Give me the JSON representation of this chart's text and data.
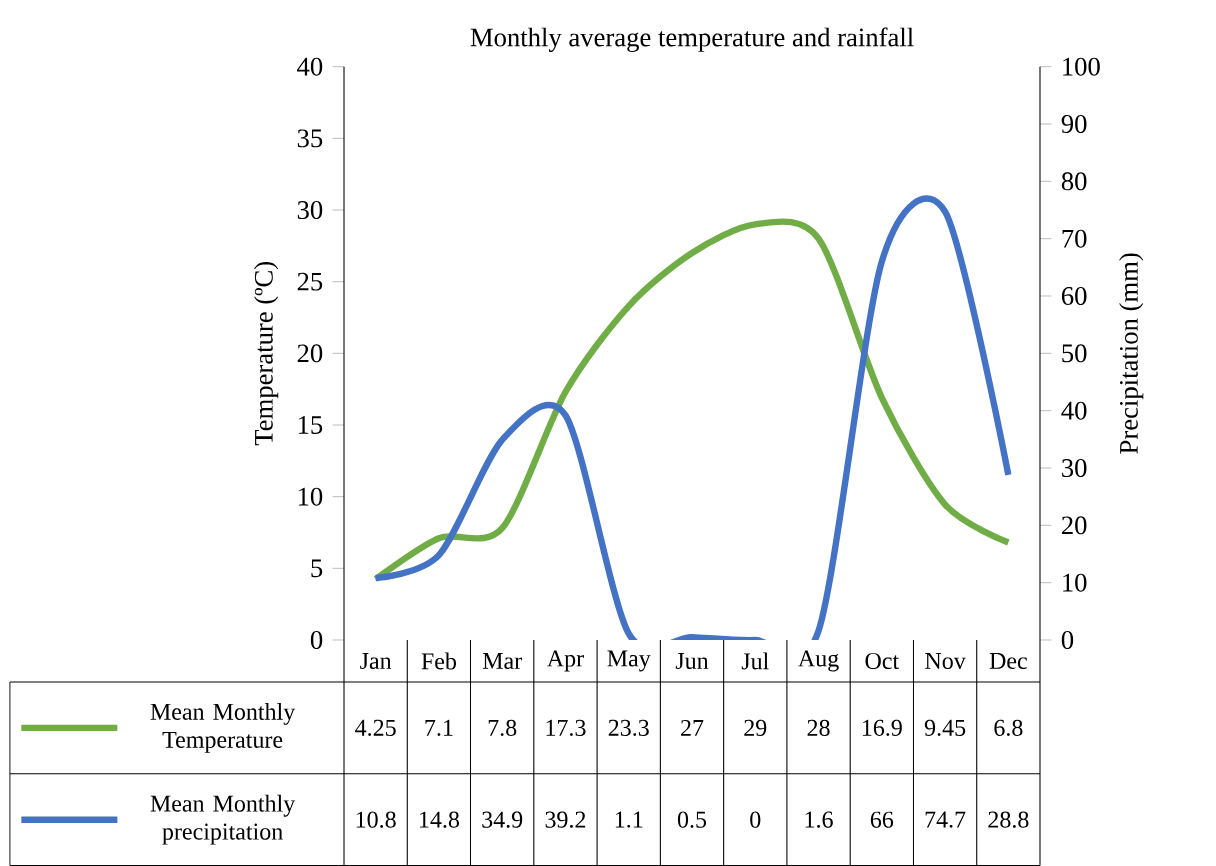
{
  "chart_data": {
    "type": "line",
    "title": "Monthly average temperature and rainfall",
    "ylabel": "Temperature (ºC)",
    "y2label": "Precipitation (mm)",
    "categories": [
      "Jan",
      "Feb",
      "Mar",
      "Apr",
      "May",
      "Jun",
      "Jul",
      "Aug",
      "Oct",
      "Nov",
      "Dec"
    ],
    "series": [
      {
        "name": "Mean Monthly Temperature",
        "color": "#70ad47",
        "values": [
          4.25,
          7.1,
          7.8,
          17.3,
          23.3,
          27,
          29,
          28,
          16.9,
          9.45,
          6.8
        ],
        "value_labels": [
          "4.25",
          "7.1",
          "7.8",
          "17.3",
          "23.3",
          "27",
          "29",
          "28",
          "16.9",
          "9.45",
          "6.8"
        ]
      },
      {
        "name": "Mean Monthly precipitation",
        "color": "#4472c4",
        "axis": "y2",
        "values": [
          10.8,
          14.8,
          34.9,
          39.2,
          1.1,
          0.5,
          0,
          1.6,
          66,
          74.7,
          28.8
        ],
        "value_labels": [
          "10.8",
          "14.8",
          "34.9",
          "39.2",
          "1.1",
          "0.5",
          "0",
          "1.6",
          "66",
          "74.7",
          "28.8"
        ]
      }
    ],
    "ylim": [
      0,
      40
    ],
    "yticks": [
      0,
      5,
      10,
      15,
      20,
      25,
      30,
      35,
      40
    ],
    "y2lim": [
      0,
      100
    ],
    "y2ticks": [
      0,
      10,
      20,
      30,
      40,
      50,
      60,
      70,
      80,
      90,
      100
    ],
    "legend": "bottom",
    "marker": "none",
    "line_style": "solid",
    "grid": false
  }
}
